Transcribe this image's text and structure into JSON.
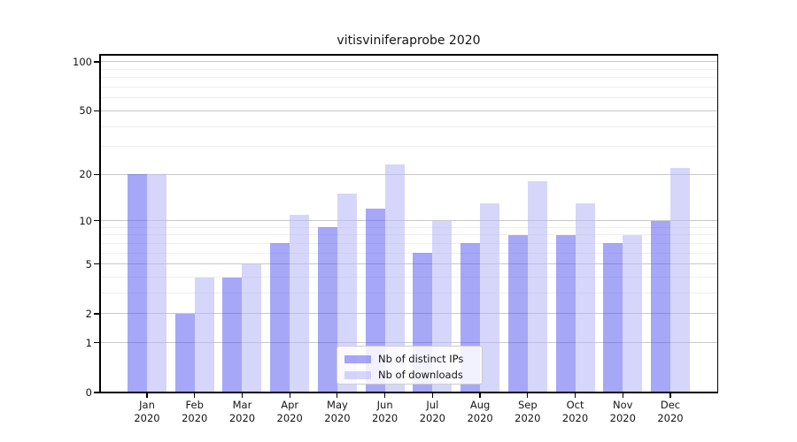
{
  "title": "vitisviniferaprobe 2020",
  "colors": {
    "distinct_ips_fill": "rgba(80,80,242,0.5)",
    "downloads_fill": "rgba(180,180,246,0.55)",
    "distinct_ips_solid": "#a7a7f8",
    "downloads_solid": "#d6d6fa",
    "major_grid": "#c9c9c9",
    "minor_grid": "#efefef",
    "spine": "#000000",
    "text": "#151515"
  },
  "chart_data": {
    "type": "bar",
    "title": "vitisviniferaprobe 2020",
    "categories": [
      "Jan",
      "Feb",
      "Mar",
      "Apr",
      "May",
      "Jun",
      "Jul",
      "Aug",
      "Sep",
      "Oct",
      "Nov",
      "Dec"
    ],
    "year_label": "2020",
    "series": [
      {
        "name": "Nb of distinct IPs",
        "values": [
          20,
          2,
          4,
          7,
          9,
          12,
          6,
          7,
          8,
          8,
          7,
          10
        ]
      },
      {
        "name": "Nb of downloads",
        "values": [
          20,
          4,
          5,
          11,
          15,
          23,
          10,
          13,
          18,
          13,
          8,
          22
        ]
      }
    ],
    "yscale": "log10(1+y)",
    "yticks": [
      0,
      1,
      2,
      5,
      10,
      20,
      50,
      100
    ],
    "minor_yticks": [
      3,
      4,
      6,
      7,
      8,
      9,
      30,
      40,
      60,
      70,
      80,
      90
    ],
    "ylim": [
      0,
      111
    ],
    "xlabel": "",
    "ylabel": "",
    "grid": true,
    "legend": {
      "entries": [
        "Nb of distinct IPs",
        "Nb of downloads"
      ],
      "position": "lower center"
    }
  }
}
